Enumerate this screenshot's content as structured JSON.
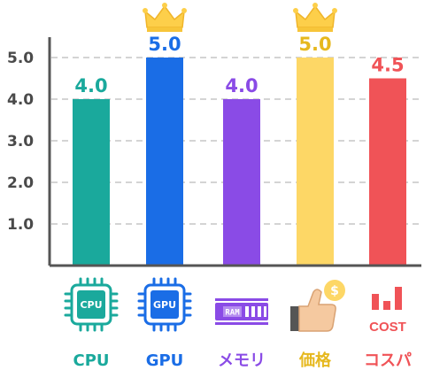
{
  "chart_data": {
    "type": "bar",
    "categories": [
      "CPU",
      "GPU",
      "メモリ",
      "価格",
      "コスパ"
    ],
    "values": [
      4.0,
      5.0,
      4.0,
      5.0,
      4.5
    ],
    "value_labels": [
      "4.0",
      "5.0",
      "4.0",
      "5.0",
      "4.5"
    ],
    "yticks": [
      "1.0",
      "2.0",
      "3.0",
      "4.0",
      "5.0"
    ],
    "ylim": [
      0,
      5.6
    ],
    "grid": true,
    "colors": [
      "#1aa99c",
      "#1a6de6",
      "#8a4be6",
      "#fdd766",
      "#f05357"
    ],
    "crowned": [
      false,
      true,
      false,
      true,
      false
    ],
    "icons": [
      "cpu-chip-icon",
      "gpu-chip-icon",
      "ram-module-icon",
      "thumbs-up-coin-icon",
      "cost-bars-icon"
    ],
    "icon_texts": {
      "cpu": "CPU",
      "gpu": "GPU",
      "ram": "RAM",
      "coin": "$",
      "cost": "COST"
    }
  }
}
